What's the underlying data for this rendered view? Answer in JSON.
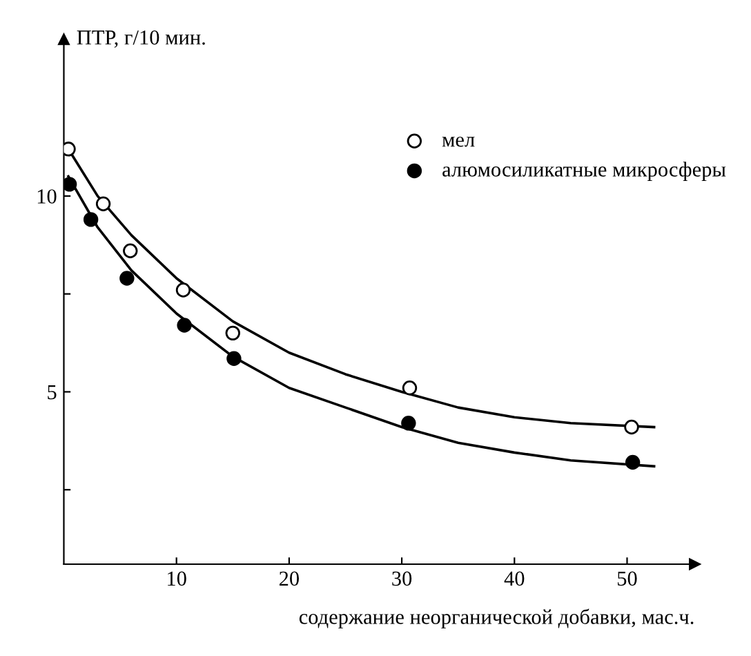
{
  "chart_data": {
    "type": "scatter",
    "xlabel": "содержание неорганической добавки, мас.ч.",
    "ylabel": "ПТР, г/10 мин.",
    "xlim": [
      0,
      56
    ],
    "ylim": [
      0.6,
      14
    ],
    "xticks": [
      10,
      20,
      30,
      40,
      50
    ],
    "yticks": [
      {
        "value": 2.5,
        "label": null
      },
      5,
      {
        "value": 7.5,
        "label": null
      },
      10
    ],
    "legend": "top right",
    "grid": false,
    "marker": "circle",
    "series": [
      {
        "name": "мел",
        "color": "#ffffff",
        "x": [
          0.4,
          3.5,
          5.9,
          10.6,
          15,
          30.7,
          50.4
        ],
        "values": [
          11.2,
          9.8,
          8.6,
          7.6,
          6.5,
          5.1,
          4.1
        ]
      },
      {
        "name": "алюмосиликатные микросферы",
        "color": "#000000",
        "x": [
          0.5,
          2.4,
          5.6,
          10.7,
          15.1,
          30.6,
          50.5
        ],
        "values": [
          10.3,
          9.4,
          7.9,
          6.7,
          5.85,
          4.2,
          3.2
        ]
      },
      {
        "type": "line",
        "color": "#000000",
        "marker": "none",
        "x": [
          0.4,
          3,
          6,
          10,
          15,
          20,
          25,
          30,
          35,
          40,
          45,
          52.4
        ],
        "values": [
          11.2,
          10.0,
          9.0,
          7.9,
          6.8,
          6.0,
          5.45,
          5.0,
          4.6,
          4.35,
          4.2,
          4.1
        ]
      },
      {
        "type": "line",
        "color": "#000000",
        "marker": "none",
        "x": [
          0.4,
          3,
          6,
          10,
          15,
          20,
          25,
          30,
          35,
          40,
          45,
          52.4
        ],
        "values": [
          10.5,
          9.2,
          8.1,
          7.0,
          5.9,
          5.1,
          4.6,
          4.1,
          3.7,
          3.45,
          3.25,
          3.1
        ]
      }
    ]
  }
}
